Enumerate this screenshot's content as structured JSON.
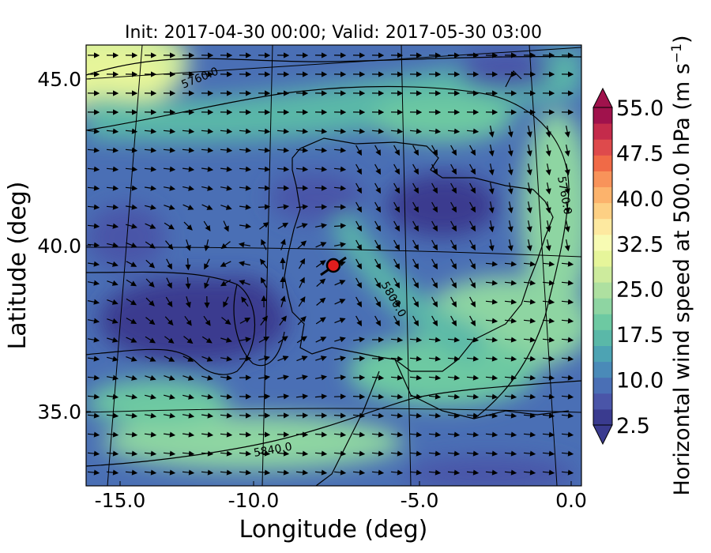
{
  "title": "Init: 2017-04-30 00:00; Valid: 2017-05-30 03:00",
  "xlabel": "Longitude (deg)",
  "ylabel": "Latitude (deg)",
  "colorbar": {
    "label": "Horizontal wind speed at 500.0 hPa (m s",
    "label_sup": "−1",
    "label_end": ")",
    "range": [
      2.5,
      55.0
    ],
    "ticks": [
      "55.0",
      "47.5",
      "40.0",
      "32.5",
      "25.0",
      "17.5",
      "10.0",
      "2.5"
    ],
    "colors": [
      "#3a3b8f",
      "#4a55a8",
      "#4a6fb5",
      "#4a8ab8",
      "#4da3b3",
      "#5ab8a8",
      "#6dc9a2",
      "#8ed5a2",
      "#aee0a0",
      "#cdeb9d",
      "#e6f59a",
      "#f7fbb3",
      "#fde9a0",
      "#fdd084",
      "#fcb36c",
      "#f8935a",
      "#f06a47",
      "#de4a4c",
      "#c42b4b",
      "#a0124c"
    ]
  },
  "contour_labels": [
    "5760.0",
    "5760.0",
    "5800.0",
    "5840.0"
  ],
  "chart_data": {
    "type": "map",
    "xlim": [
      -16.0,
      0.3
    ],
    "ylim": [
      32.6,
      46.1
    ],
    "xticks": [
      "-15.0",
      "-10.0",
      "-5.0",
      "0.0"
    ],
    "yticks": [
      "45.0",
      "40.0",
      "35.0"
    ],
    "marker": {
      "lon": -7.6,
      "lat": 39.4,
      "color": "#e11d1d"
    }
  }
}
